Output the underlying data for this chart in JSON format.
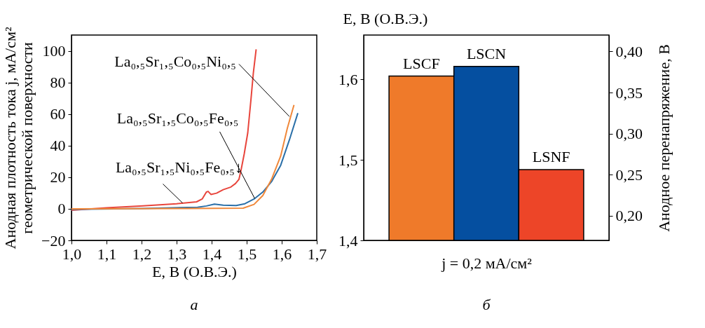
{
  "chart_data": [
    {
      "type": "line",
      "xlabel": "E, В (О.В.Э.)",
      "ylabel": [
        "Анодная плотность тока j, мА/см²",
        "геометрической поверхности"
      ],
      "xlim": [
        1.0,
        1.7
      ],
      "ylim": [
        -20,
        110
      ],
      "xticks": [
        {
          "value": 1.0,
          "label": "1,0"
        },
        {
          "value": 1.1,
          "label": "1,1"
        },
        {
          "value": 1.2,
          "label": "1,2"
        },
        {
          "value": 1.3,
          "label": "1,3"
        },
        {
          "value": 1.4,
          "label": "1,4"
        },
        {
          "value": 1.5,
          "label": "1,5"
        },
        {
          "value": 1.6,
          "label": "1,6"
        },
        {
          "value": 1.7,
          "label": "1,7"
        }
      ],
      "yticks": [
        {
          "value": -20,
          "label": "−20"
        },
        0,
        20,
        40,
        60,
        80,
        100
      ],
      "grid": false,
      "legend": false,
      "line_style": "solid",
      "marker": "none",
      "series": [
        {
          "color": "#e8453c",
          "x": [
            1.0,
            1.1,
            1.204,
            1.3,
            1.357,
            1.373,
            1.385,
            1.39,
            1.398,
            1.414,
            1.433,
            1.455,
            1.468,
            1.478,
            1.484,
            1.493,
            1.503,
            1.512,
            1.519,
            1.527
          ],
          "values": [
            -0.9,
            0.6,
            1.8,
            3.2,
            4.4,
            6.2,
            10.6,
            11,
            9.1,
            9.9,
            12.1,
            13.8,
            16,
            18.7,
            24.6,
            34.8,
            48,
            68.7,
            86,
            101
          ]
        },
        {
          "color": "#2a6fa8",
          "x": [
            1.0,
            1.204,
            1.36,
            1.385,
            1.408,
            1.433,
            1.47,
            1.495,
            1.521,
            1.546,
            1.571,
            1.597,
            1.622,
            1.646
          ],
          "values": [
            -0.4,
            0.2,
            1.0,
            1.8,
            3.0,
            2.3,
            2.1,
            3.2,
            6.2,
            10.6,
            17.2,
            27.5,
            43.7,
            60.6
          ]
        },
        {
          "color": "#f0883a",
          "x": [
            1.0,
            1.33,
            1.49,
            1.521,
            1.546,
            1.571,
            1.597,
            1.616,
            1.635
          ],
          "values": [
            0,
            0.2,
            0.4,
            2.8,
            8.4,
            18.7,
            33.4,
            51,
            65.7
          ]
        }
      ],
      "annotations": [
        {
          "text": "La₀,₅Sr₁,₅Co₀,₅Ni₀,₅",
          "x": 1.622,
          "y": 58.4
        },
        {
          "text": "La₀,₅Sr₁,₅Co₀,₅Fe₀,₅",
          "x": 1.523,
          "y": 6.5
        },
        {
          "text": "La₀,₅Sr₁,₅Ni₀,₅Fe₀,₅↓",
          "x": 1.317,
          "y": 3.7
        },
        "а"
      ]
    },
    {
      "type": "bar",
      "categories": [
        "LSCF",
        "LSCN",
        "LSNF"
      ],
      "xlabel": "j = 0,2 мА/см²",
      "ylabel": "E, В (О.В.Э.)",
      "y2label": "Анодное перенапряжение, В",
      "ylim": [
        1.4,
        1.655
      ],
      "yticks": [
        {
          "value": 1.4,
          "label": "1,4"
        },
        {
          "value": 1.5,
          "label": "1,5"
        },
        {
          "value": 1.6,
          "label": "1,6"
        }
      ],
      "y2lim": [
        0.17,
        0.42
      ],
      "y2ticks": [
        {
          "value": 0.2,
          "label": "0,20"
        },
        {
          "value": 0.25,
          "label": "0,25"
        },
        {
          "value": 0.3,
          "label": "0,30"
        },
        {
          "value": 0.35,
          "label": "0,35"
        },
        {
          "value": 0.4,
          "label": "0,40"
        }
      ],
      "grid": false,
      "legend": false,
      "series": [
        {
          "colors": [
            "#ef7a2a",
            "#054fa0",
            "#ed4528"
          ],
          "values": [
            1.604,
            1.616,
            1.488
          ]
        }
      ],
      "annotations": [
        "б"
      ]
    }
  ]
}
